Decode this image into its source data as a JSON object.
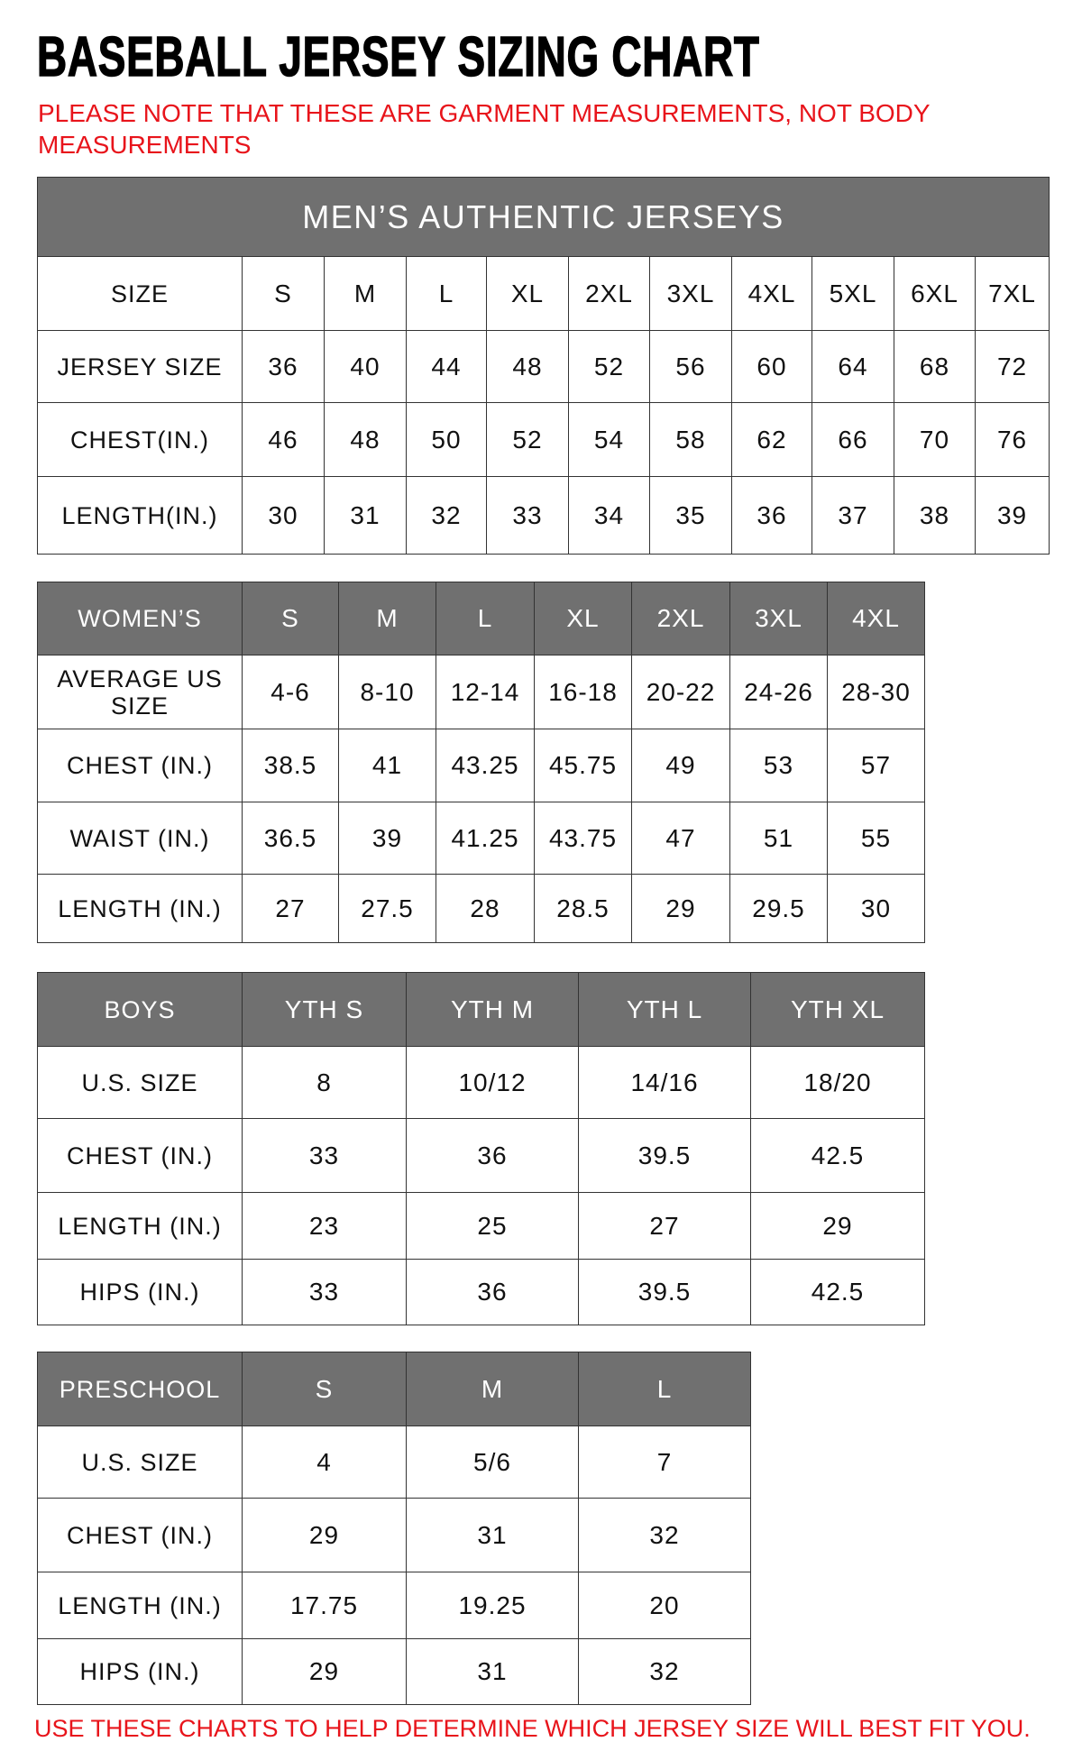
{
  "title": "BASEBALL JERSEY SIZING CHART",
  "note": "PLEASE NOTE THAT THESE ARE GARMENT MEASUREMENTS, NOT BODY MEASUREMENTS",
  "footer": "USE THESE CHARTS TO HELP DETERMINE WHICH JERSEY SIZE WILL BEST FIT YOU.",
  "colors": {
    "header_gray": "#707070",
    "note_red": "#e8141b"
  },
  "mens": {
    "title": "MEN’S AUTHENTIC JERSEYS",
    "rows": [
      [
        "SIZE",
        "S",
        "M",
        "L",
        "XL",
        "2XL",
        "3XL",
        "4XL",
        "5XL",
        "6XL",
        "7XL"
      ],
      [
        "JERSEY SIZE",
        "36",
        "40",
        "44",
        "48",
        "52",
        "56",
        "60",
        "64",
        "68",
        "72"
      ],
      [
        "CHEST(IN.)",
        "46",
        "48",
        "50",
        "52",
        "54",
        "58",
        "62",
        "66",
        "70",
        "76"
      ],
      [
        "LENGTH(IN.)",
        "30",
        "31",
        "32",
        "33",
        "34",
        "35",
        "36",
        "37",
        "38",
        "39"
      ]
    ]
  },
  "womens": {
    "rows": [
      [
        "WOMEN’S",
        "S",
        "M",
        "L",
        "XL",
        "2XL",
        "3XL",
        "4XL"
      ],
      [
        "AVERAGE US SIZE",
        "4-6",
        "8-10",
        "12-14",
        "16-18",
        "20-22",
        "24-26",
        "28-30"
      ],
      [
        "CHEST (IN.)",
        "38.5",
        "41",
        "43.25",
        "45.75",
        "49",
        "53",
        "57"
      ],
      [
        "WAIST (IN.)",
        "36.5",
        "39",
        "41.25",
        "43.75",
        "47",
        "51",
        "55"
      ],
      [
        "LENGTH (IN.)",
        "27",
        "27.5",
        "28",
        "28.5",
        "29",
        "29.5",
        "30"
      ]
    ]
  },
  "boys": {
    "rows": [
      [
        "BOYS",
        "YTH S",
        "YTH M",
        "YTH L",
        "YTH XL"
      ],
      [
        "U.S. SIZE",
        "8",
        "10/12",
        "14/16",
        "18/20"
      ],
      [
        "CHEST (IN.)",
        "33",
        "36",
        "39.5",
        "42.5"
      ],
      [
        "LENGTH (IN.)",
        "23",
        "25",
        "27",
        "29"
      ],
      [
        "HIPS (IN.)",
        "33",
        "36",
        "39.5",
        "42.5"
      ]
    ]
  },
  "preschool": {
    "rows": [
      [
        "PRESCHOOL",
        "S",
        "M",
        "L"
      ],
      [
        "U.S. SIZE",
        "4",
        "5/6",
        "7"
      ],
      [
        "CHEST (IN.)",
        "29",
        "31",
        "32"
      ],
      [
        "LENGTH (IN.)",
        "17.75",
        "19.25",
        "20"
      ],
      [
        "HIPS (IN.)",
        "29",
        "31",
        "32"
      ]
    ]
  }
}
